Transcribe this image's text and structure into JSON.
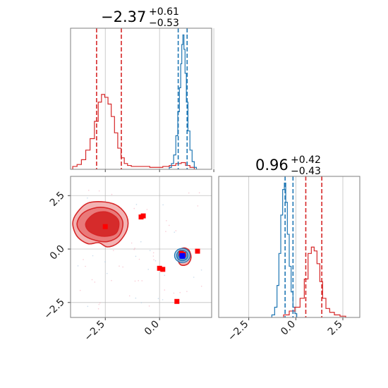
{
  "chart_data": [
    {
      "panel": "top-left",
      "type": "histogram",
      "title": {
        "value": "−2.37",
        "plus": "+0.61",
        "minus": "−0.53"
      },
      "xlim": [
        -4.1,
        2.4
      ],
      "x_ticks": [
        -2.5,
        0.0,
        2.5
      ],
      "grid": true,
      "series": [
        {
          "name": "red",
          "color": "#d62728",
          "bins": [
            [
              -3.9,
              0.03
            ],
            [
              -3.7,
              0.05
            ],
            [
              -3.5,
              0.1
            ],
            [
              -3.3,
              0.2
            ],
            [
              -3.1,
              0.32
            ],
            [
              -2.9,
              0.5
            ],
            [
              -2.75,
              0.7
            ],
            [
              -2.6,
              0.78
            ],
            [
              -2.45,
              0.75
            ],
            [
              -2.3,
              0.68
            ],
            [
              -2.15,
              0.55
            ],
            [
              -2.0,
              0.38
            ],
            [
              -1.85,
              0.22
            ],
            [
              -1.7,
              0.12
            ],
            [
              -1.55,
              0.06
            ],
            [
              -1.4,
              0.04
            ],
            [
              -1.2,
              0.03
            ],
            [
              -0.9,
              0.03
            ],
            [
              -0.6,
              0.03
            ],
            [
              -0.3,
              0.02
            ],
            [
              0.0,
              0.02
            ],
            [
              0.3,
              0.03
            ],
            [
              0.6,
              0.04
            ],
            [
              0.9,
              0.06
            ],
            [
              1.1,
              0.07
            ],
            [
              1.3,
              0.04
            ],
            [
              1.5,
              0.02
            ]
          ],
          "quantile_lines": [
            -2.9,
            -1.76
          ]
        },
        {
          "name": "blue",
          "color": "#1f77b4",
          "bins": [
            [
              0.5,
              0.02
            ],
            [
              0.6,
              0.06
            ],
            [
              0.7,
              0.15
            ],
            [
              0.8,
              0.35
            ],
            [
              0.88,
              0.6
            ],
            [
              0.95,
              0.85
            ],
            [
              1.0,
              1.1
            ],
            [
              1.05,
              1.3
            ],
            [
              1.1,
              1.4
            ],
            [
              1.15,
              1.25
            ],
            [
              1.2,
              1.0
            ],
            [
              1.27,
              0.7
            ],
            [
              1.35,
              0.4
            ],
            [
              1.45,
              0.2
            ],
            [
              1.55,
              0.08
            ],
            [
              1.65,
              0.02
            ]
          ],
          "quantile_lines": [
            0.86,
            1.27
          ]
        }
      ]
    },
    {
      "panel": "bottom-right",
      "type": "histogram",
      "title": {
        "value": "0.96",
        "plus": "+0.42",
        "minus": "−0.43"
      },
      "xlim": [
        -4.1,
        3.4
      ],
      "x_ticks": [
        -2.5,
        0.0,
        2.5
      ],
      "grid": true,
      "series": [
        {
          "name": "blue",
          "color": "#1f77b4",
          "bins": [
            [
              -1.2,
              0.02
            ],
            [
              -1.05,
              0.08
            ],
            [
              -0.95,
              0.25
            ],
            [
              -0.85,
              0.5
            ],
            [
              -0.75,
              0.8
            ],
            [
              -0.65,
              1.0
            ],
            [
              -0.57,
              1.05
            ],
            [
              -0.5,
              0.9
            ],
            [
              -0.4,
              0.65
            ],
            [
              -0.3,
              0.4
            ],
            [
              -0.2,
              0.2
            ],
            [
              -0.1,
              0.08
            ],
            [
              0.0,
              0.03
            ]
          ],
          "quantile_lines": [
            -0.57,
            -0.15
          ]
        },
        {
          "name": "red",
          "color": "#d62728",
          "bins": [
            [
              -0.5,
              0.02
            ],
            [
              -0.2,
              0.05
            ],
            [
              0.1,
              0.08
            ],
            [
              0.35,
              0.15
            ],
            [
              0.55,
              0.3
            ],
            [
              0.75,
              0.5
            ],
            [
              0.9,
              0.55
            ],
            [
              1.05,
              0.52
            ],
            [
              1.2,
              0.42
            ],
            [
              1.35,
              0.28
            ],
            [
              1.5,
              0.15
            ],
            [
              1.7,
              0.07
            ],
            [
              1.9,
              0.04
            ],
            [
              2.2,
              0.02
            ],
            [
              2.5,
              0.01
            ]
          ],
          "quantile_lines": [
            0.53,
            1.38
          ]
        }
      ]
    },
    {
      "panel": "bottom-left",
      "type": "scatter",
      "xlim": [
        -4.1,
        2.4
      ],
      "ylim": [
        -3.2,
        3.4
      ],
      "x_ticks": [
        -2.5,
        0.0
      ],
      "y_ticks": [
        -2.5,
        0.0,
        2.5
      ],
      "grid": true,
      "series": [
        {
          "name": "red-contour",
          "color": "#d62728",
          "levels": [
            [
              [
                -4.0,
                1.2
              ],
              [
                -3.8,
                1.7
              ],
              [
                -3.3,
                2.15
              ],
              [
                -2.5,
                2.2
              ],
              [
                -1.9,
                2.0
              ],
              [
                -1.5,
                1.5
              ],
              [
                -1.5,
                0.9
              ],
              [
                -1.9,
                0.3
              ],
              [
                -2.4,
                0.1
              ],
              [
                -2.8,
                0.3
              ],
              [
                -3.3,
                0.25
              ],
              [
                -3.8,
                0.6
              ]
            ],
            [
              [
                -3.8,
                1.2
              ],
              [
                -3.5,
                1.7
              ],
              [
                -2.8,
                1.95
              ],
              [
                -2.1,
                1.8
              ],
              [
                -1.7,
                1.3
              ],
              [
                -1.85,
                0.65
              ],
              [
                -2.4,
                0.35
              ],
              [
                -3.1,
                0.45
              ],
              [
                -3.6,
                0.75
              ]
            ],
            [
              [
                -3.4,
                1.2
              ],
              [
                -3.0,
                1.65
              ],
              [
                -2.4,
                1.72
              ],
              [
                -1.9,
                1.35
              ],
              [
                -2.0,
                0.75
              ],
              [
                -2.6,
                0.6
              ],
              [
                -3.2,
                0.8
              ]
            ]
          ],
          "inner_contour": [
            [
              0.85,
              -0.5
            ],
            [
              0.9,
              -0.1
            ],
            [
              1.1,
              0.05
            ],
            [
              1.35,
              -0.05
            ],
            [
              1.45,
              -0.4
            ],
            [
              1.3,
              -0.7
            ],
            [
              1.0,
              -0.75
            ]
          ]
        },
        {
          "name": "blue-contour",
          "color": "#1f77b4",
          "center": [
            1.05,
            -0.3
          ]
        },
        {
          "name": "red-markers",
          "color": "#ff0000",
          "points": [
            [
              -2.5,
              1.05
            ],
            [
              -0.85,
              1.5
            ],
            [
              -0.75,
              1.55
            ],
            [
              1.0,
              -0.2
            ],
            [
              1.1,
              -0.25
            ],
            [
              1.75,
              -0.1
            ],
            [
              0.0,
              -0.9
            ],
            [
              0.15,
              -0.95
            ],
            [
              0.8,
              -2.45
            ]
          ]
        },
        {
          "name": "blue-marker",
          "color": "#0000ff",
          "points": [
            [
              1.05,
              -0.32
            ]
          ]
        }
      ]
    }
  ]
}
